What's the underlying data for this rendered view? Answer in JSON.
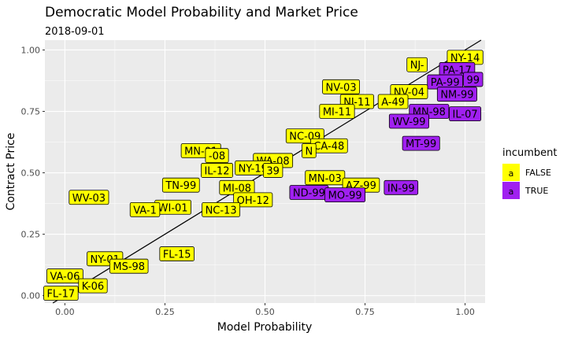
{
  "chart_data": {
    "type": "scatter",
    "title": "Democratic Model Probability and Market Price",
    "subtitle": "2018-09-01",
    "xlabel": "Model Probability",
    "ylabel": "Contract Price",
    "xlim": [
      -0.05,
      1.05
    ],
    "ylim": [
      -0.03,
      1.04
    ],
    "x_ticks": [
      "0.00",
      "0.25",
      "0.50",
      "0.75",
      "1.00"
    ],
    "x_tick_values": [
      0,
      0.25,
      0.5,
      0.75,
      1.0
    ],
    "y_ticks": [
      "0.00",
      "0.25",
      "0.50",
      "0.75",
      "1.00"
    ],
    "y_tick_values": [
      0,
      0.25,
      0.5,
      0.75,
      1.0
    ],
    "grid": true,
    "legend": {
      "title": "incumbent",
      "position": "right",
      "glyph": "a",
      "entries": [
        {
          "label": "FALSE",
          "color": "#ffff00"
        },
        {
          "label": "TRUE",
          "color": "#a020f0"
        }
      ]
    },
    "reference_line": {
      "type": "y=x"
    },
    "colors": {
      "panel": "#ebebeb",
      "grid": "#ffffff",
      "false": "#ffff00",
      "true": "#a020f0"
    },
    "points": [
      {
        "label": "NY-14",
        "x": 1.0,
        "y": 0.97,
        "incumbent": false
      },
      {
        "label": "NJ-",
        "x": 0.88,
        "y": 0.94,
        "incumbent": false
      },
      {
        "label": "PA-17",
        "x": 0.98,
        "y": 0.92,
        "incumbent": true
      },
      {
        "label": "PA-99",
        "x": 0.95,
        "y": 0.87,
        "incumbent": true
      },
      {
        "label": "99",
        "x": 1.02,
        "y": 0.88,
        "incumbent": true
      },
      {
        "label": "NM-99",
        "x": 0.98,
        "y": 0.82,
        "incumbent": true
      },
      {
        "label": "NV-03",
        "x": 0.69,
        "y": 0.85,
        "incumbent": false
      },
      {
        "label": "NV-04",
        "x": 0.86,
        "y": 0.83,
        "incumbent": false
      },
      {
        "label": "NJ-11",
        "x": 0.73,
        "y": 0.79,
        "incumbent": false
      },
      {
        "label": "A-49",
        "x": 0.82,
        "y": 0.79,
        "incumbent": false
      },
      {
        "label": "MN-98",
        "x": 0.91,
        "y": 0.75,
        "incumbent": true
      },
      {
        "label": "MI-11",
        "x": 0.68,
        "y": 0.75,
        "incumbent": false
      },
      {
        "label": "IL-07",
        "x": 1.0,
        "y": 0.74,
        "incumbent": true
      },
      {
        "label": "WV-99",
        "x": 0.86,
        "y": 0.71,
        "incumbent": true
      },
      {
        "label": "NC-09",
        "x": 0.6,
        "y": 0.65,
        "incumbent": false
      },
      {
        "label": "MT-99",
        "x": 0.89,
        "y": 0.62,
        "incumbent": true
      },
      {
        "label": "CA-48",
        "x": 0.66,
        "y": 0.61,
        "incumbent": false
      },
      {
        "label": "N",
        "x": 0.61,
        "y": 0.59,
        "incumbent": false
      },
      {
        "label": "MN-01",
        "x": 0.34,
        "y": 0.59,
        "incumbent": false
      },
      {
        "label": "-08",
        "x": 0.38,
        "y": 0.57,
        "incumbent": false
      },
      {
        "label": "WA-08",
        "x": 0.52,
        "y": 0.55,
        "incumbent": false
      },
      {
        "label": "NY-19",
        "x": 0.47,
        "y": 0.52,
        "incumbent": false
      },
      {
        "label": "IL-12",
        "x": 0.38,
        "y": 0.51,
        "incumbent": false
      },
      {
        "label": "39",
        "x": 0.52,
        "y": 0.51,
        "incumbent": false
      },
      {
        "label": "MN-03",
        "x": 0.65,
        "y": 0.48,
        "incumbent": false
      },
      {
        "label": "TN-99",
        "x": 0.29,
        "y": 0.45,
        "incumbent": false
      },
      {
        "label": "MI-08",
        "x": 0.43,
        "y": 0.44,
        "incumbent": false
      },
      {
        "label": "AZ-99",
        "x": 0.74,
        "y": 0.45,
        "incumbent": false
      },
      {
        "label": "IN-99",
        "x": 0.84,
        "y": 0.44,
        "incumbent": true
      },
      {
        "label": "ND-99",
        "x": 0.61,
        "y": 0.42,
        "incumbent": true
      },
      {
        "label": "MO-99",
        "x": 0.7,
        "y": 0.41,
        "incumbent": true
      },
      {
        "label": "WV-03",
        "x": 0.06,
        "y": 0.4,
        "incumbent": false
      },
      {
        "label": "OH-12",
        "x": 0.47,
        "y": 0.39,
        "incumbent": false
      },
      {
        "label": "WI-01",
        "x": 0.27,
        "y": 0.36,
        "incumbent": false
      },
      {
        "label": "VA-1",
        "x": 0.2,
        "y": 0.35,
        "incumbent": false
      },
      {
        "label": "NC-13",
        "x": 0.39,
        "y": 0.35,
        "incumbent": false
      },
      {
        "label": "FL-15",
        "x": 0.28,
        "y": 0.17,
        "incumbent": false
      },
      {
        "label": "NY-01",
        "x": 0.1,
        "y": 0.15,
        "incumbent": false
      },
      {
        "label": "MS-98",
        "x": 0.16,
        "y": 0.12,
        "incumbent": false
      },
      {
        "label": "VA-06",
        "x": 0.0,
        "y": 0.08,
        "incumbent": false
      },
      {
        "label": "K-06",
        "x": 0.07,
        "y": 0.04,
        "incumbent": false
      },
      {
        "label": "FL-17",
        "x": -0.01,
        "y": 0.01,
        "incumbent": false
      }
    ]
  }
}
